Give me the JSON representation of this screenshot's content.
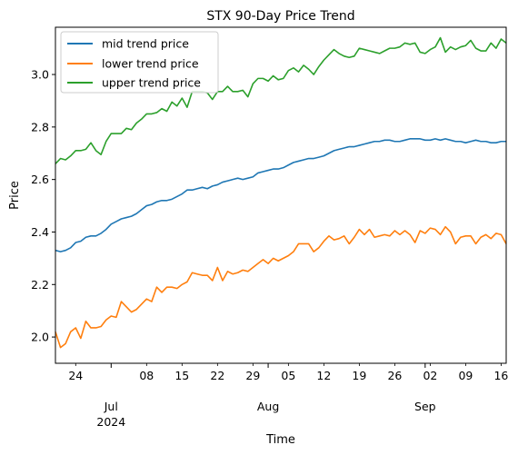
{
  "chart_data": {
    "type": "line",
    "title": "STX 90-Day Price Trend",
    "xlabel": "Time",
    "ylabel": "Price",
    "x_start": "2024-06-20",
    "x_end": "2024-09-17",
    "xlim": [
      "2024-06-20",
      "2024-09-17"
    ],
    "ylim": [
      1.9,
      3.18
    ],
    "grid": false,
    "legend_position": "upper left",
    "y_ticks": [
      {
        "value": 2.0,
        "label": "2.0"
      },
      {
        "value": 2.2,
        "label": "2.2"
      },
      {
        "value": 2.4,
        "label": "2.4"
      },
      {
        "value": 2.6,
        "label": "2.6"
      },
      {
        "value": 2.8,
        "label": "2.8"
      },
      {
        "value": 3.0,
        "label": "3.0"
      }
    ],
    "x_minor_ticks": [
      {
        "date": "2024-06-24",
        "label": "24"
      },
      {
        "date": "2024-07-08",
        "label": "08"
      },
      {
        "date": "2024-07-15",
        "label": "15"
      },
      {
        "date": "2024-07-22",
        "label": "22"
      },
      {
        "date": "2024-07-29",
        "label": "29"
      },
      {
        "date": "2024-08-05",
        "label": "05"
      },
      {
        "date": "2024-08-12",
        "label": "12"
      },
      {
        "date": "2024-08-19",
        "label": "19"
      },
      {
        "date": "2024-08-26",
        "label": "26"
      },
      {
        "date": "2024-09-02",
        "label": "02"
      },
      {
        "date": "2024-09-09",
        "label": "09"
      },
      {
        "date": "2024-09-16",
        "label": "16"
      }
    ],
    "x_major_ticks": [
      {
        "date": "2024-07-01",
        "label": "Jul",
        "sublabel": "2024"
      },
      {
        "date": "2024-08-01",
        "label": "Aug",
        "sublabel": ""
      },
      {
        "date": "2024-09-01",
        "label": "Sep",
        "sublabel": ""
      }
    ],
    "series": [
      {
        "name": "mid trend price",
        "color": "#1f77b4",
        "values": [
          2.33,
          2.325,
          2.33,
          2.34,
          2.36,
          2.365,
          2.38,
          2.385,
          2.385,
          2.395,
          2.41,
          2.43,
          2.44,
          2.45,
          2.455,
          2.46,
          2.47,
          2.485,
          2.5,
          2.505,
          2.515,
          2.52,
          2.52,
          2.525,
          2.535,
          2.545,
          2.56,
          2.56,
          2.565,
          2.57,
          2.565,
          2.575,
          2.58,
          2.59,
          2.595,
          2.6,
          2.605,
          2.6,
          2.605,
          2.61,
          2.625,
          2.63,
          2.635,
          2.64,
          2.64,
          2.645,
          2.655,
          2.665,
          2.67,
          2.675,
          2.68,
          2.68,
          2.685,
          2.69,
          2.7,
          2.71,
          2.715,
          2.72,
          2.725,
          2.725,
          2.73,
          2.735,
          2.74,
          2.745,
          2.745,
          2.75,
          2.75,
          2.745,
          2.745,
          2.75,
          2.755,
          2.755,
          2.755,
          2.75,
          2.75,
          2.755,
          2.75,
          2.755,
          2.75,
          2.745,
          2.745,
          2.74,
          2.745,
          2.75,
          2.745,
          2.745,
          2.74,
          2.74,
          2.745,
          2.745
        ]
      },
      {
        "name": "lower trend price",
        "color": "#ff7f0e",
        "values": [
          2.02,
          1.96,
          1.975,
          2.02,
          2.035,
          1.995,
          2.06,
          2.035,
          2.035,
          2.04,
          2.065,
          2.08,
          2.075,
          2.135,
          2.115,
          2.095,
          2.105,
          2.125,
          2.145,
          2.135,
          2.19,
          2.17,
          2.19,
          2.19,
          2.185,
          2.2,
          2.21,
          2.245,
          2.24,
          2.235,
          2.235,
          2.215,
          2.265,
          2.215,
          2.25,
          2.24,
          2.245,
          2.255,
          2.25,
          2.265,
          2.28,
          2.295,
          2.28,
          2.3,
          2.29,
          2.3,
          2.31,
          2.325,
          2.355,
          2.355,
          2.355,
          2.325,
          2.34,
          2.365,
          2.385,
          2.37,
          2.375,
          2.385,
          2.355,
          2.38,
          2.41,
          2.39,
          2.41,
          2.38,
          2.385,
          2.39,
          2.385,
          2.405,
          2.39,
          2.405,
          2.39,
          2.36,
          2.405,
          2.395,
          2.415,
          2.41,
          2.39,
          2.42,
          2.4,
          2.355,
          2.38,
          2.385,
          2.385,
          2.355,
          2.38,
          2.39,
          2.375,
          2.395,
          2.39,
          2.355
        ]
      },
      {
        "name": "upper trend price",
        "color": "#2ca02c",
        "values": [
          2.66,
          2.68,
          2.675,
          2.69,
          2.71,
          2.71,
          2.715,
          2.74,
          2.71,
          2.695,
          2.745,
          2.775,
          2.775,
          2.775,
          2.795,
          2.79,
          2.815,
          2.83,
          2.85,
          2.85,
          2.855,
          2.87,
          2.86,
          2.895,
          2.88,
          2.91,
          2.875,
          2.935,
          2.935,
          2.935,
          2.93,
          2.905,
          2.935,
          2.935,
          2.955,
          2.935,
          2.935,
          2.94,
          2.915,
          2.965,
          2.985,
          2.985,
          2.975,
          2.995,
          2.98,
          2.985,
          3.015,
          3.025,
          3.01,
          3.035,
          3.02,
          3.0,
          3.03,
          3.055,
          3.075,
          3.095,
          3.08,
          3.07,
          3.065,
          3.07,
          3.1,
          3.095,
          3.09,
          3.085,
          3.08,
          3.09,
          3.1,
          3.1,
          3.105,
          3.12,
          3.115,
          3.12,
          3.085,
          3.08,
          3.095,
          3.105,
          3.14,
          3.085,
          3.105,
          3.095,
          3.105,
          3.11,
          3.13,
          3.1,
          3.09,
          3.09,
          3.12,
          3.1,
          3.135,
          3.12
        ]
      }
    ]
  }
}
